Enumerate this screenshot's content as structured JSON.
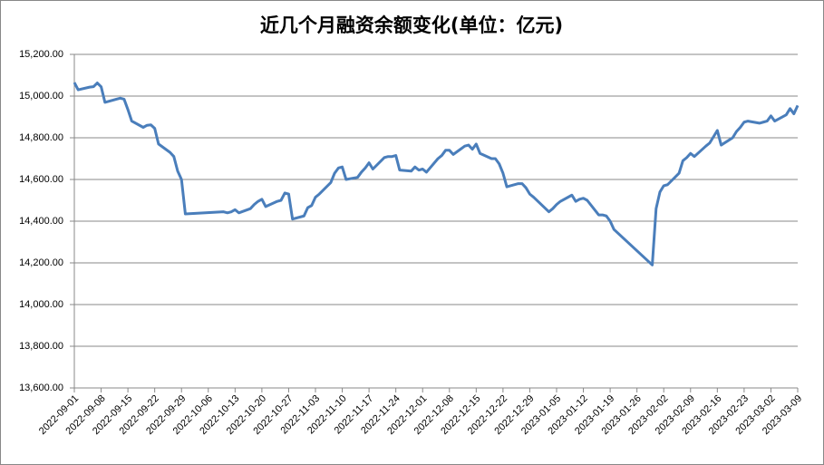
{
  "chart_data": {
    "type": "line",
    "title": "近几个月融资余额变化(单位：亿元)",
    "x": [
      "2022-09-01",
      "2022-09-02",
      "2022-09-05",
      "2022-09-06",
      "2022-09-07",
      "2022-09-08",
      "2022-09-09",
      "2022-09-13",
      "2022-09-14",
      "2022-09-15",
      "2022-09-16",
      "2022-09-19",
      "2022-09-20",
      "2022-09-21",
      "2022-09-22",
      "2022-09-23",
      "2022-09-26",
      "2022-09-27",
      "2022-09-28",
      "2022-09-29",
      "2022-09-30",
      "2022-10-10",
      "2022-10-11",
      "2022-10-12",
      "2022-10-13",
      "2022-10-14",
      "2022-10-17",
      "2022-10-18",
      "2022-10-19",
      "2022-10-20",
      "2022-10-21",
      "2022-10-24",
      "2022-10-25",
      "2022-10-26",
      "2022-10-27",
      "2022-10-28",
      "2022-10-31",
      "2022-11-01",
      "2022-11-02",
      "2022-11-03",
      "2022-11-04",
      "2022-11-07",
      "2022-11-08",
      "2022-11-09",
      "2022-11-10",
      "2022-11-11",
      "2022-11-14",
      "2022-11-15",
      "2022-11-16",
      "2022-11-17",
      "2022-11-18",
      "2022-11-21",
      "2022-11-22",
      "2022-11-23",
      "2022-11-24",
      "2022-11-25",
      "2022-11-28",
      "2022-11-29",
      "2022-11-30",
      "2022-12-01",
      "2022-12-02",
      "2022-12-05",
      "2022-12-06",
      "2022-12-07",
      "2022-12-08",
      "2022-12-09",
      "2022-12-12",
      "2022-12-13",
      "2022-12-14",
      "2022-12-15",
      "2022-12-16",
      "2022-12-19",
      "2022-12-20",
      "2022-12-21",
      "2022-12-22",
      "2022-12-23",
      "2022-12-26",
      "2022-12-27",
      "2022-12-28",
      "2022-12-29",
      "2022-12-30",
      "2023-01-03",
      "2023-01-04",
      "2023-01-05",
      "2023-01-06",
      "2023-01-09",
      "2023-01-10",
      "2023-01-11",
      "2023-01-12",
      "2023-01-13",
      "2023-01-16",
      "2023-01-17",
      "2023-01-18",
      "2023-01-19",
      "2023-01-20",
      "2023-01-30",
      "2023-01-31",
      "2023-02-01",
      "2023-02-02",
      "2023-02-03",
      "2023-02-06",
      "2023-02-07",
      "2023-02-08",
      "2023-02-09",
      "2023-02-10",
      "2023-02-13",
      "2023-02-14",
      "2023-02-15",
      "2023-02-16",
      "2023-02-17",
      "2023-02-20",
      "2023-02-21",
      "2023-02-22",
      "2023-02-23",
      "2023-02-24",
      "2023-02-27",
      "2023-02-28",
      "2023-03-01",
      "2023-03-02",
      "2023-03-03",
      "2023-03-06",
      "2023-03-07",
      "2023-03-08",
      "2023-03-09"
    ],
    "series": [
      {
        "name": "融资余额",
        "color": "#4a7ebb",
        "values": [
          15065,
          15030,
          15043,
          15045,
          15063,
          15045,
          14970,
          14990,
          14985,
          14935,
          14880,
          14850,
          14860,
          14862,
          14845,
          14770,
          14730,
          14710,
          14640,
          14600,
          14435,
          14445,
          14440,
          14445,
          14455,
          14440,
          14460,
          14480,
          14495,
          14505,
          14470,
          14495,
          14500,
          14535,
          14530,
          14410,
          14425,
          14465,
          14475,
          14515,
          14530,
          14585,
          14630,
          14655,
          14660,
          14600,
          14610,
          14635,
          14655,
          14680,
          14650,
          14705,
          14710,
          14710,
          14715,
          14645,
          14640,
          14660,
          14645,
          14650,
          14635,
          14700,
          14715,
          14740,
          14740,
          14720,
          14760,
          14765,
          14745,
          14770,
          14725,
          14700,
          14700,
          14675,
          14630,
          14565,
          14580,
          14580,
          14560,
          14530,
          14515,
          14445,
          14460,
          14480,
          14495,
          14525,
          14495,
          14505,
          14510,
          14500,
          14430,
          14430,
          14425,
          14400,
          14360,
          14190,
          14460,
          14540,
          14570,
          14575,
          14630,
          14690,
          14705,
          14725,
          14710,
          14760,
          14775,
          14805,
          14835,
          14765,
          14800,
          14830,
          14850,
          14875,
          14880,
          14870,
          14875,
          14880,
          14905,
          14880,
          14910,
          14940,
          14915,
          14955
        ]
      }
    ],
    "xlim": [
      "2022-09-01",
      "2023-03-09"
    ],
    "xticks": [
      "2022-09-01",
      "2022-09-08",
      "2022-09-15",
      "2022-09-22",
      "2022-09-29",
      "2022-10-06",
      "2022-10-13",
      "2022-10-20",
      "2022-10-27",
      "2022-11-03",
      "2022-11-10",
      "2022-11-17",
      "2022-11-24",
      "2022-12-01",
      "2022-12-08",
      "2022-12-15",
      "2022-12-22",
      "2022-12-29",
      "2023-01-05",
      "2023-01-12",
      "2023-01-19",
      "2023-01-26",
      "2023-02-02",
      "2023-02-09",
      "2023-02-16",
      "2023-02-23",
      "2023-03-02",
      "2023-03-09"
    ],
    "ylim": [
      13600,
      15200
    ],
    "yticks": [
      {
        "value": 13600,
        "label": "13,600.00"
      },
      {
        "value": 13800,
        "label": "13,800.00"
      },
      {
        "value": 14000,
        "label": "14,000.00"
      },
      {
        "value": 14200,
        "label": "14,200.00"
      },
      {
        "value": 14400,
        "label": "14,400.00"
      },
      {
        "value": 14600,
        "label": "14,600.00"
      },
      {
        "value": 14800,
        "label": "14,800.00"
      },
      {
        "value": 15000,
        "label": "15,000.00"
      },
      {
        "value": 15200,
        "label": "15,200.00"
      }
    ],
    "grid": true
  }
}
